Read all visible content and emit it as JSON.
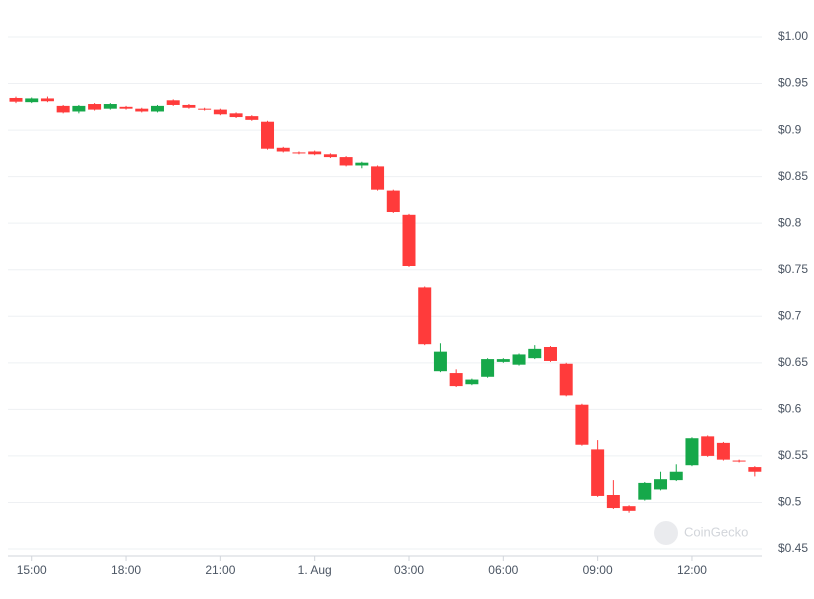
{
  "chart_data": {
    "type": "candlestick",
    "watermark": "CoinGecko",
    "up_color": "#16a84a",
    "down_color": "#ff3b3b",
    "categories": [
      null,
      "15:00",
      null,
      null,
      null,
      null,
      null,
      "18:00",
      null,
      null,
      null,
      null,
      null,
      "21:00",
      null,
      null,
      null,
      null,
      null,
      "1. Aug",
      null,
      null,
      null,
      null,
      null,
      "03:00",
      null,
      null,
      null,
      null,
      null,
      "06:00",
      null,
      null,
      null,
      null,
      null,
      "09:00",
      null,
      null,
      null,
      null,
      null,
      "12:00",
      null,
      null,
      null,
      null
    ],
    "open": [
      0.9345,
      0.93,
      0.934,
      0.926,
      0.92,
      0.928,
      0.923,
      0.925,
      0.923,
      0.92,
      0.932,
      0.927,
      0.923,
      0.922,
      0.918,
      0.915,
      0.909,
      0.881,
      0.876,
      0.877,
      0.874,
      0.871,
      0.862,
      0.861,
      0.835,
      0.809,
      0.731,
      0.641,
      0.639,
      0.627,
      0.635,
      0.651,
      0.648,
      0.655,
      0.667,
      0.649,
      0.605,
      0.557,
      0.508,
      0.496,
      0.503,
      0.514,
      0.524,
      0.54,
      0.571,
      0.564,
      0.545,
      0.538
    ],
    "high": [
      0.936,
      0.935,
      0.936,
      0.927,
      0.927,
      0.929,
      0.929,
      0.926,
      0.924,
      0.927,
      0.933,
      0.928,
      0.924,
      0.923,
      0.919,
      0.916,
      0.91,
      0.882,
      0.877,
      0.878,
      0.875,
      0.872,
      0.866,
      0.862,
      0.836,
      0.81,
      0.732,
      0.671,
      0.643,
      0.633,
      0.655,
      0.655,
      0.66,
      0.669,
      0.668,
      0.65,
      0.606,
      0.567,
      0.524,
      0.497,
      0.522,
      0.533,
      0.541,
      0.57,
      0.572,
      0.565,
      0.546,
      0.539
    ],
    "low": [
      0.929,
      0.929,
      0.93,
      0.918,
      0.918,
      0.921,
      0.922,
      0.922,
      0.919,
      0.919,
      0.926,
      0.923,
      0.921,
      0.916,
      0.913,
      0.91,
      0.879,
      0.876,
      0.874,
      0.873,
      0.87,
      0.861,
      0.859,
      0.835,
      0.811,
      0.753,
      0.669,
      0.64,
      0.624,
      0.626,
      0.634,
      0.65,
      0.647,
      0.654,
      0.651,
      0.614,
      0.561,
      0.506,
      0.493,
      0.489,
      0.502,
      0.513,
      0.523,
      0.539,
      0.549,
      0.545,
      0.543,
      0.528
    ],
    "close": [
      0.9305,
      0.934,
      0.931,
      0.919,
      0.926,
      0.922,
      0.928,
      0.923,
      0.92,
      0.926,
      0.927,
      0.924,
      0.922,
      0.917,
      0.914,
      0.911,
      0.88,
      0.877,
      0.875,
      0.874,
      0.871,
      0.862,
      0.865,
      0.836,
      0.812,
      0.754,
      0.67,
      0.662,
      0.625,
      0.632,
      0.654,
      0.654,
      0.659,
      0.665,
      0.652,
      0.615,
      0.562,
      0.507,
      0.494,
      0.491,
      0.521,
      0.525,
      0.533,
      0.569,
      0.55,
      0.546,
      0.544,
      0.533
    ],
    "ylim": [
      0.45,
      1.0
    ],
    "yticks": [
      {
        "value": 1.0,
        "label": "$1.00"
      },
      {
        "value": 0.95,
        "label": "$0.95"
      },
      {
        "value": 0.9,
        "label": "$0.9"
      },
      {
        "value": 0.85,
        "label": "$0.85"
      },
      {
        "value": 0.8,
        "label": "$0.8"
      },
      {
        "value": 0.75,
        "label": "$0.75"
      },
      {
        "value": 0.7,
        "label": "$0.7"
      },
      {
        "value": 0.65,
        "label": "$0.65"
      },
      {
        "value": 0.6,
        "label": "$0.6"
      },
      {
        "value": 0.55,
        "label": "$0.55"
      },
      {
        "value": 0.5,
        "label": "$0.5"
      },
      {
        "value": 0.45,
        "label": "$0.45"
      }
    ],
    "grid": true
  }
}
